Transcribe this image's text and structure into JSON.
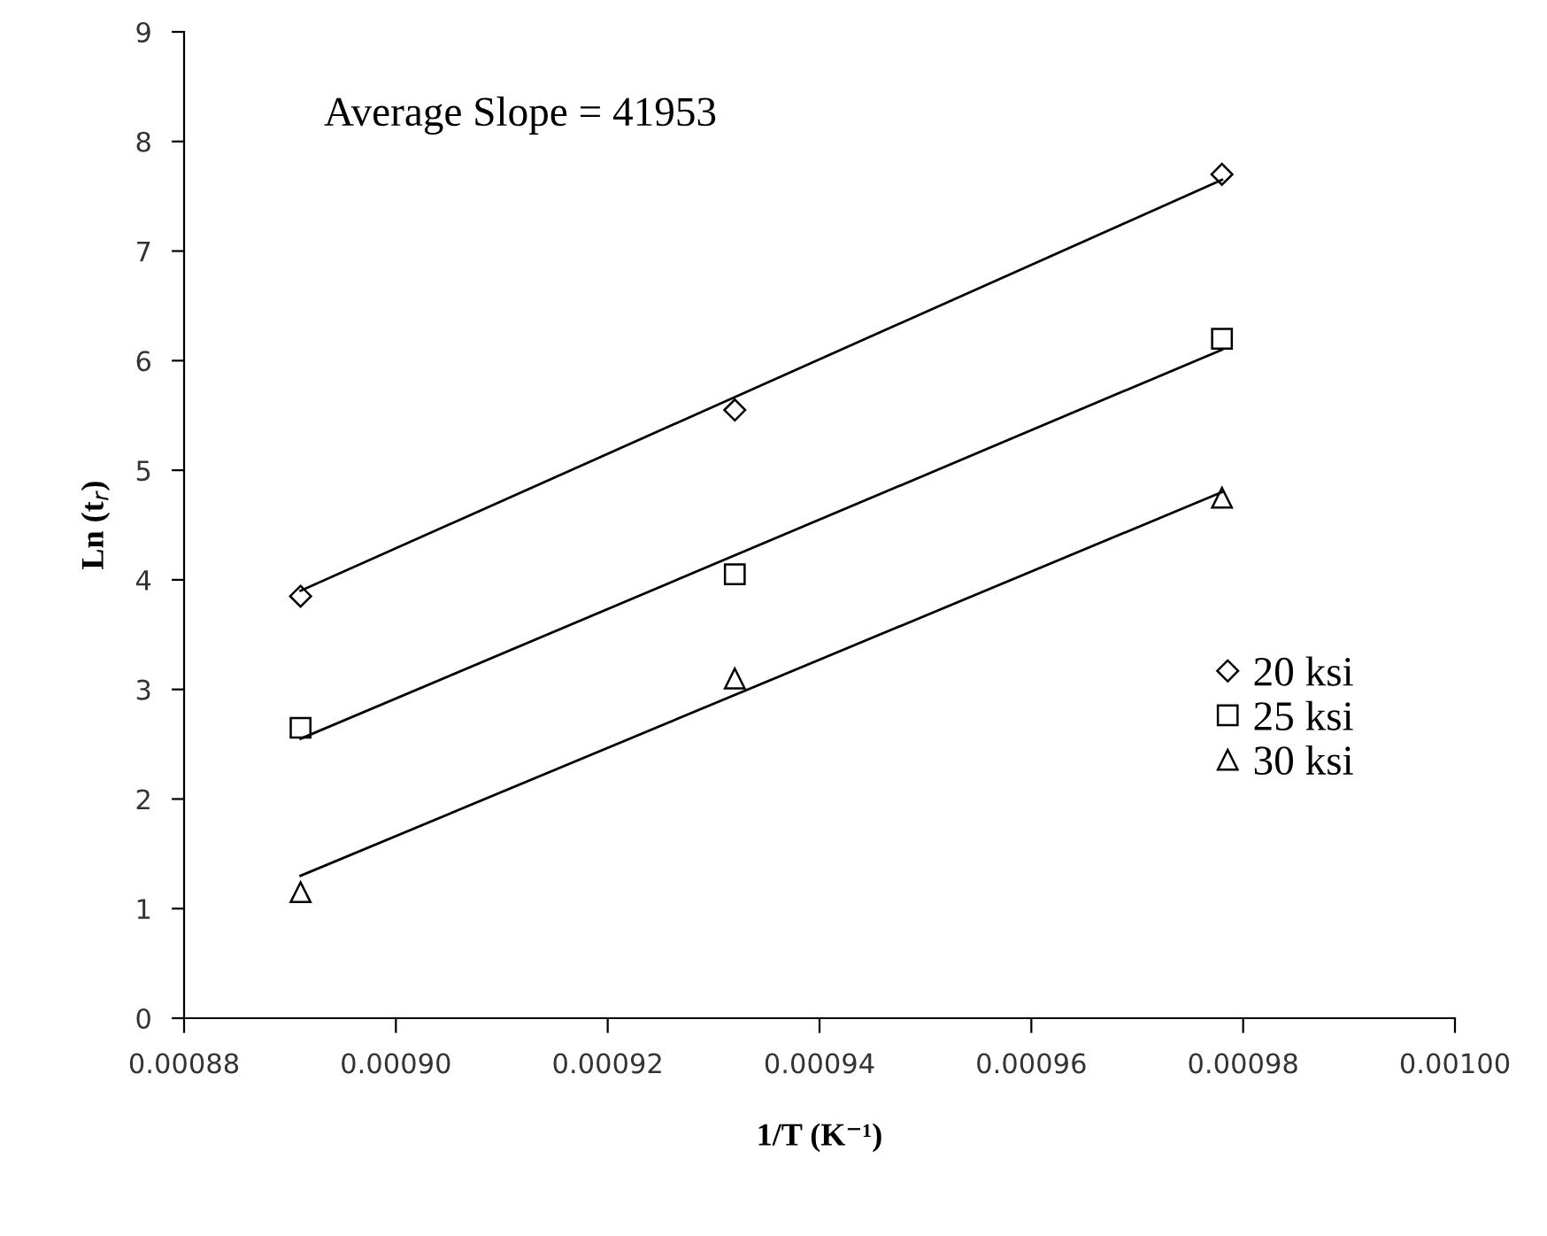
{
  "chart_data": {
    "type": "scatter",
    "xlabel": "1/T (K⁻¹)",
    "ylabel": "Ln (t$_{r}$)",
    "annotations": [
      "Average Slope = 41953"
    ],
    "xlim": [
      0.00088,
      0.001
    ],
    "ylim": [
      0,
      9
    ],
    "xticks": [
      {
        "value": 0.00088,
        "label": "0.00088"
      },
      {
        "value": 0.0009,
        "label": "0.00090"
      },
      {
        "value": 0.00092,
        "label": "0.00092"
      },
      {
        "value": 0.00094,
        "label": "0.00094"
      },
      {
        "value": 0.00096,
        "label": "0.00096"
      },
      {
        "value": 0.00098,
        "label": "0.00098"
      },
      {
        "value": 0.001,
        "label": "0.00100"
      }
    ],
    "yticks": [
      0,
      1,
      2,
      3,
      4,
      5,
      6,
      7,
      8,
      9
    ],
    "grid": false,
    "legend": "bottom right",
    "series": [
      {
        "name": "20 ksi",
        "color": "#000000",
        "marker": "diamond",
        "x": [
          0.000891,
          0.000932,
          0.000978
        ],
        "values": [
          3.85,
          5.55,
          7.7
        ]
      },
      {
        "name": "25 ksi",
        "color": "#000000",
        "marker": "square",
        "x": [
          0.000891,
          0.000932,
          0.000978
        ],
        "values": [
          2.65,
          4.05,
          6.2
        ]
      },
      {
        "name": "30 ksi",
        "color": "#000000",
        "marker": "triangle",
        "x": [
          0.000891,
          0.000932,
          0.000978
        ],
        "values": [
          1.15,
          3.1,
          4.75
        ]
      },
      {
        "type": "line",
        "color": "#000000",
        "marker": "none",
        "x": [
          0.000891,
          0.000978
        ],
        "values": [
          3.9,
          7.65
        ]
      },
      {
        "type": "line",
        "color": "#000000",
        "marker": "none",
        "x": [
          0.000891,
          0.000978
        ],
        "values": [
          2.55,
          6.1
        ]
      },
      {
        "type": "line",
        "color": "#000000",
        "marker": "none",
        "x": [
          0.000891,
          0.000978
        ],
        "values": [
          1.3,
          4.8
        ]
      }
    ]
  }
}
